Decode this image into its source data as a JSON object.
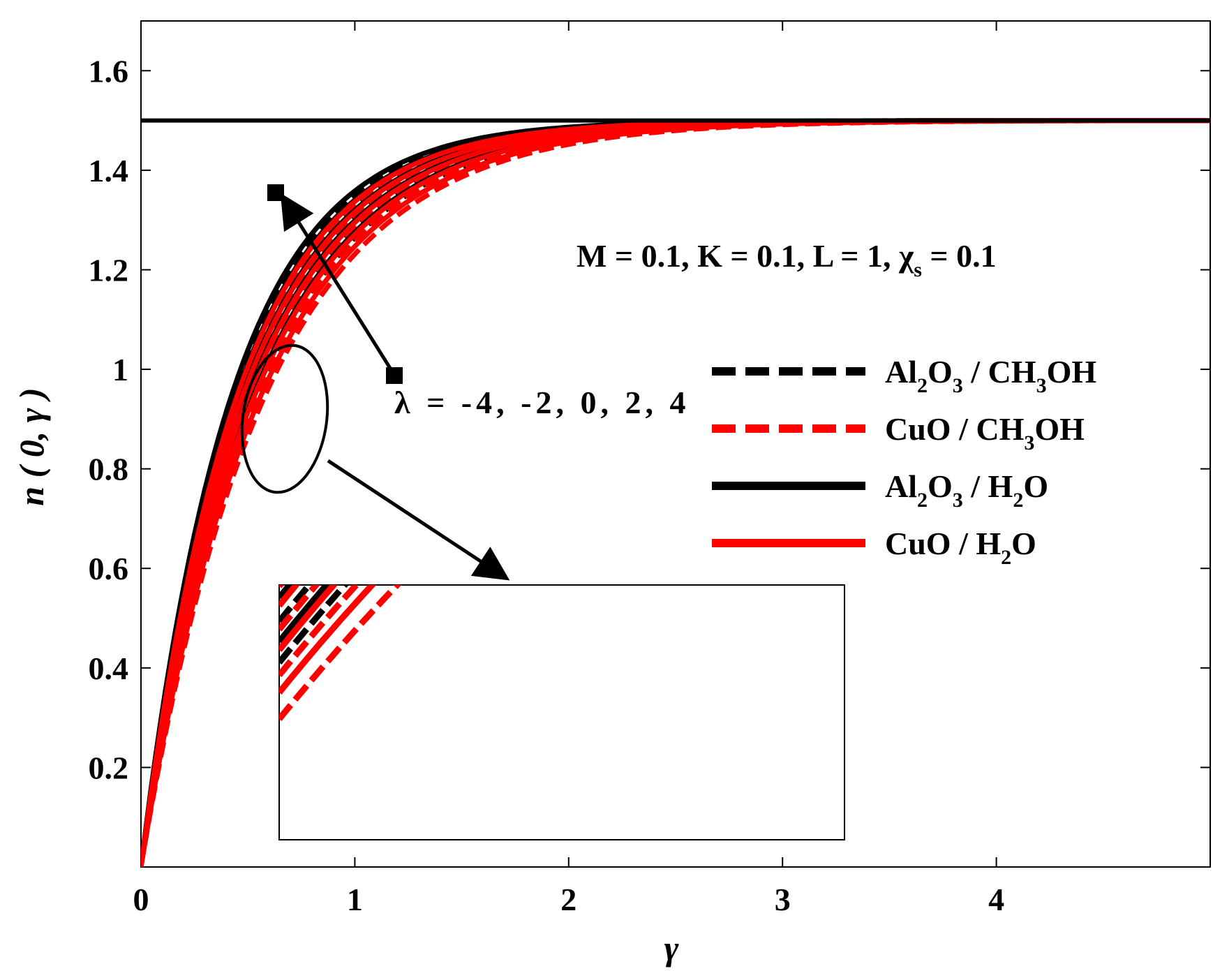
{
  "chart_data": {
    "type": "line",
    "xlabel": "γ",
    "ylabel": "n ( 0, γ )",
    "xlim": [
      0,
      5
    ],
    "ylim": [
      0,
      1.7
    ],
    "x_ticks": [
      "0",
      "1",
      "2",
      "3",
      "4"
    ],
    "y_ticks": [
      "0.2",
      "0.4",
      "0.6",
      "0.8",
      "1",
      "1.2",
      "1.4",
      "1.6"
    ],
    "grid": false,
    "legend_position": "right",
    "parameter_text": {
      "pre": "M = 0.1, K = 0.1, L = 1, χ",
      "sub": "s",
      "post": " = 0.1"
    },
    "lambda_label": "λ = -4, -2, 0, 2, 4",
    "asymptote": 1.5,
    "legend": [
      {
        "parts": [
          "Al",
          "2",
          "O",
          "3",
          " / CH",
          "3",
          "OH"
        ],
        "color": "#000000",
        "dash": true
      },
      {
        "parts": [
          "CuO / CH",
          "3",
          "OH"
        ],
        "color": "#ff0000",
        "dash": true
      },
      {
        "parts": [
          "Al",
          "2",
          "O",
          "3",
          " / H",
          "2",
          "O"
        ],
        "color": "#000000",
        "dash": false
      },
      {
        "parts": [
          "CuO / H",
          "2",
          "O"
        ],
        "color": "#ff0000",
        "dash": false
      }
    ],
    "lambda_values": [
      -4,
      -2,
      0,
      2,
      4
    ],
    "series": [
      {
        "fluid": "Al2O3 / CH3OH",
        "color": "#000000",
        "dash": true,
        "rates": [
          2.3,
          2.18,
          2.06,
          1.95,
          1.85
        ]
      },
      {
        "fluid": "CuO / CH3OH",
        "color": "#ff0000",
        "dash": true,
        "rates": [
          2.16,
          2.04,
          1.93,
          1.82,
          1.72
        ]
      },
      {
        "fluid": "Al2O3 / H2O",
        "color": "#000000",
        "dash": false,
        "rates": [
          2.36,
          2.24,
          2.12,
          2.01,
          1.9
        ]
      },
      {
        "fluid": "CuO / H2O",
        "color": "#ff0000",
        "dash": false,
        "rates": [
          2.22,
          2.1,
          1.99,
          1.88,
          1.78
        ]
      }
    ],
    "curve_model": "n = 1.5 * (1 - exp(-rate * γ))",
    "inset": {
      "x_range": [
        0.5,
        0.95
      ],
      "y_range": [
        0.78,
        0.96
      ]
    }
  }
}
